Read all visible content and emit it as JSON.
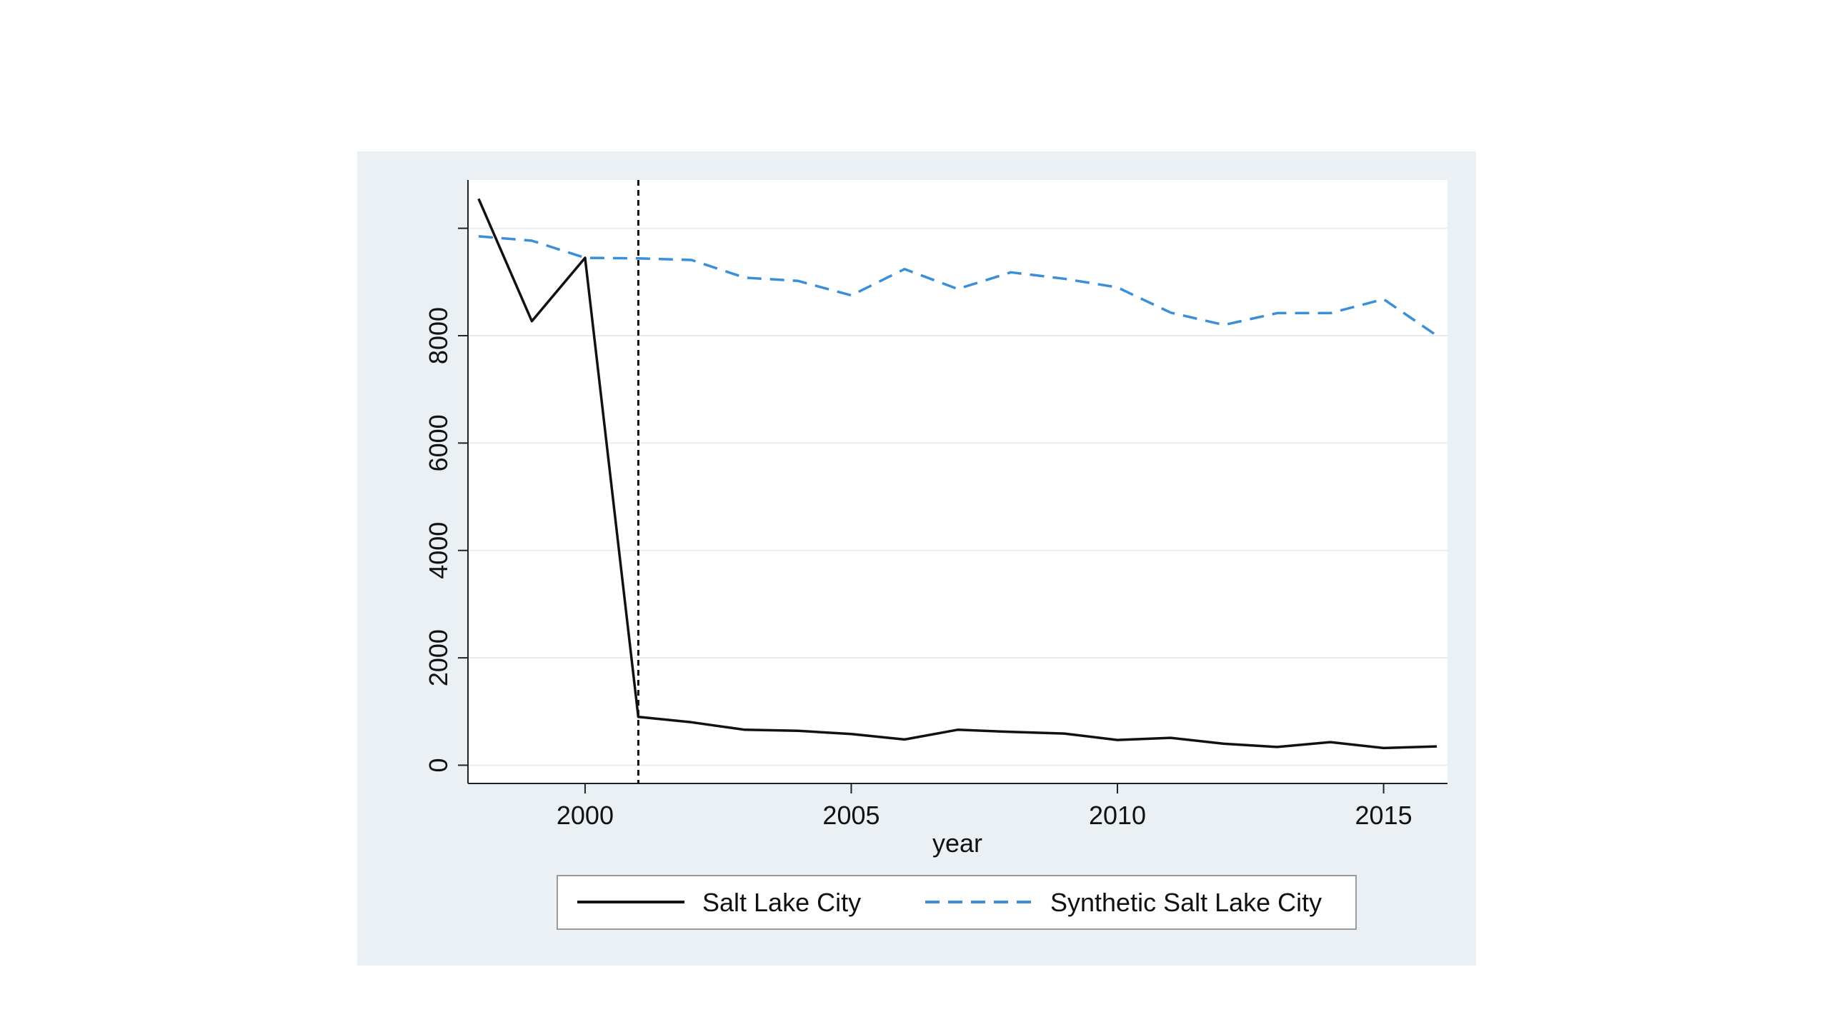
{
  "chart_data": {
    "type": "line",
    "xlabel": "year",
    "ylabel": "",
    "xlim": [
      1997.8,
      2016.2
    ],
    "ylim": [
      -340,
      10900
    ],
    "x_ticks": [
      2000,
      2005,
      2010,
      2015
    ],
    "y_ticks": [
      0,
      2000,
      4000,
      6000,
      8000
    ],
    "grid": true,
    "intervention_year": 2001,
    "legend_position": "bottom",
    "x": [
      1998,
      1999,
      2000,
      2001,
      2002,
      2003,
      2004,
      2005,
      2006,
      2007,
      2008,
      2009,
      2010,
      2011,
      2012,
      2013,
      2014,
      2015,
      2016
    ],
    "series": [
      {
        "name": "Salt Lake City",
        "style": "solid",
        "color": "#111111",
        "values": [
          10550,
          8270,
          9450,
          900,
          800,
          660,
          640,
          580,
          480,
          660,
          620,
          590,
          470,
          510,
          400,
          340,
          430,
          320,
          350
        ]
      },
      {
        "name": "Synthetic Salt Lake City",
        "style": "dashed",
        "color": "#3a8fd8",
        "values": [
          9850,
          9770,
          9450,
          9440,
          9410,
          9080,
          9020,
          8750,
          9240,
          8870,
          9180,
          9060,
          8900,
          8430,
          8200,
          8420,
          8420,
          8680,
          8000
        ]
      }
    ]
  },
  "colors": {
    "outer_background": "#eaf0f3",
    "plot_background": "#ffffff",
    "grid": "#e6ecef"
  }
}
